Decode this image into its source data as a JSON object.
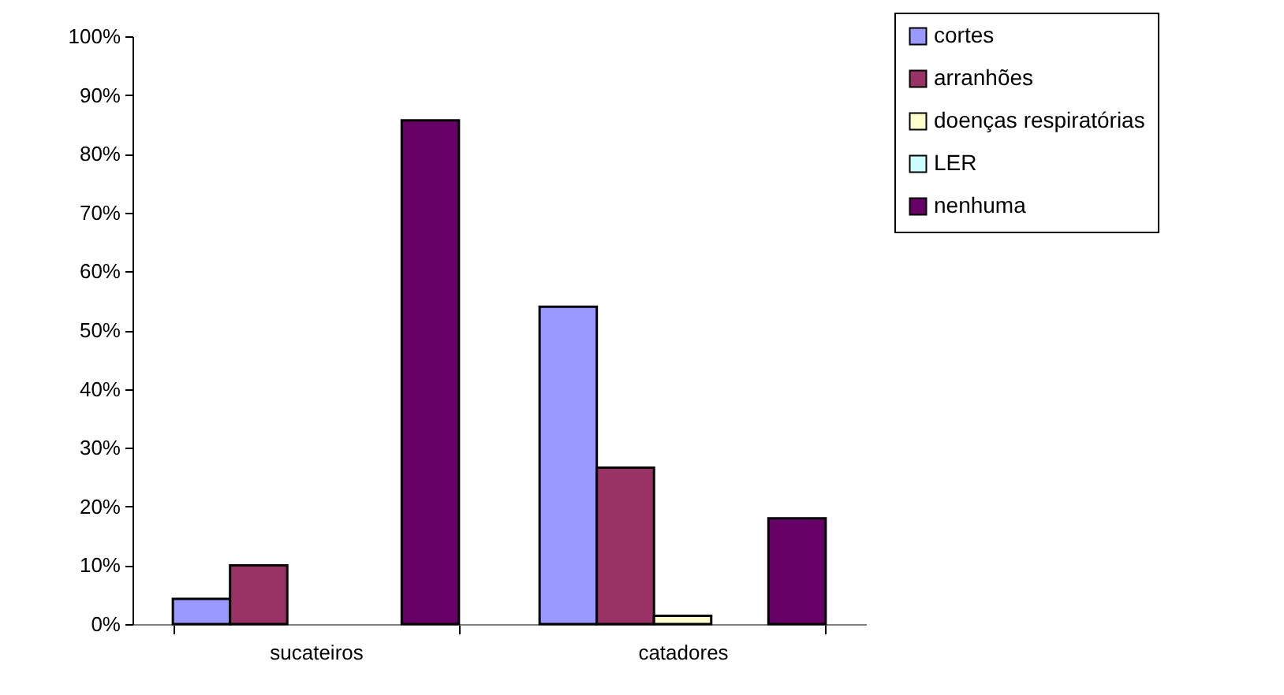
{
  "chart_data": {
    "type": "bar",
    "categories": [
      "sucateiros",
      "catadores"
    ],
    "series": [
      {
        "name": "cortes",
        "color": "#9999ff",
        "values": [
          4.3,
          54.0
        ]
      },
      {
        "name": "arranhões",
        "color": "#993366",
        "values": [
          10.0,
          26.6
        ]
      },
      {
        "name": "doenças respiratórias",
        "color": "#ffffcc",
        "values": [
          0,
          1.4
        ]
      },
      {
        "name": "LER",
        "color": "#ccffff",
        "values": [
          0,
          0
        ]
      },
      {
        "name": "nenhuma",
        "color": "#660066",
        "values": [
          85.7,
          18.0
        ]
      }
    ],
    "ylim": [
      0,
      100
    ],
    "yticks": [
      {
        "value": 0,
        "label": "0%"
      },
      {
        "value": 10,
        "label": "10%"
      },
      {
        "value": 20,
        "label": "20%"
      },
      {
        "value": 30,
        "label": "30%"
      },
      {
        "value": 40,
        "label": "40%"
      },
      {
        "value": 50,
        "label": "50%"
      },
      {
        "value": 60,
        "label": "60%"
      },
      {
        "value": 70,
        "label": "70%"
      },
      {
        "value": 80,
        "label": "80%"
      },
      {
        "value": 90,
        "label": "90%"
      },
      {
        "value": 100,
        "label": "100%"
      }
    ],
    "grid": false,
    "legend": "top right"
  }
}
